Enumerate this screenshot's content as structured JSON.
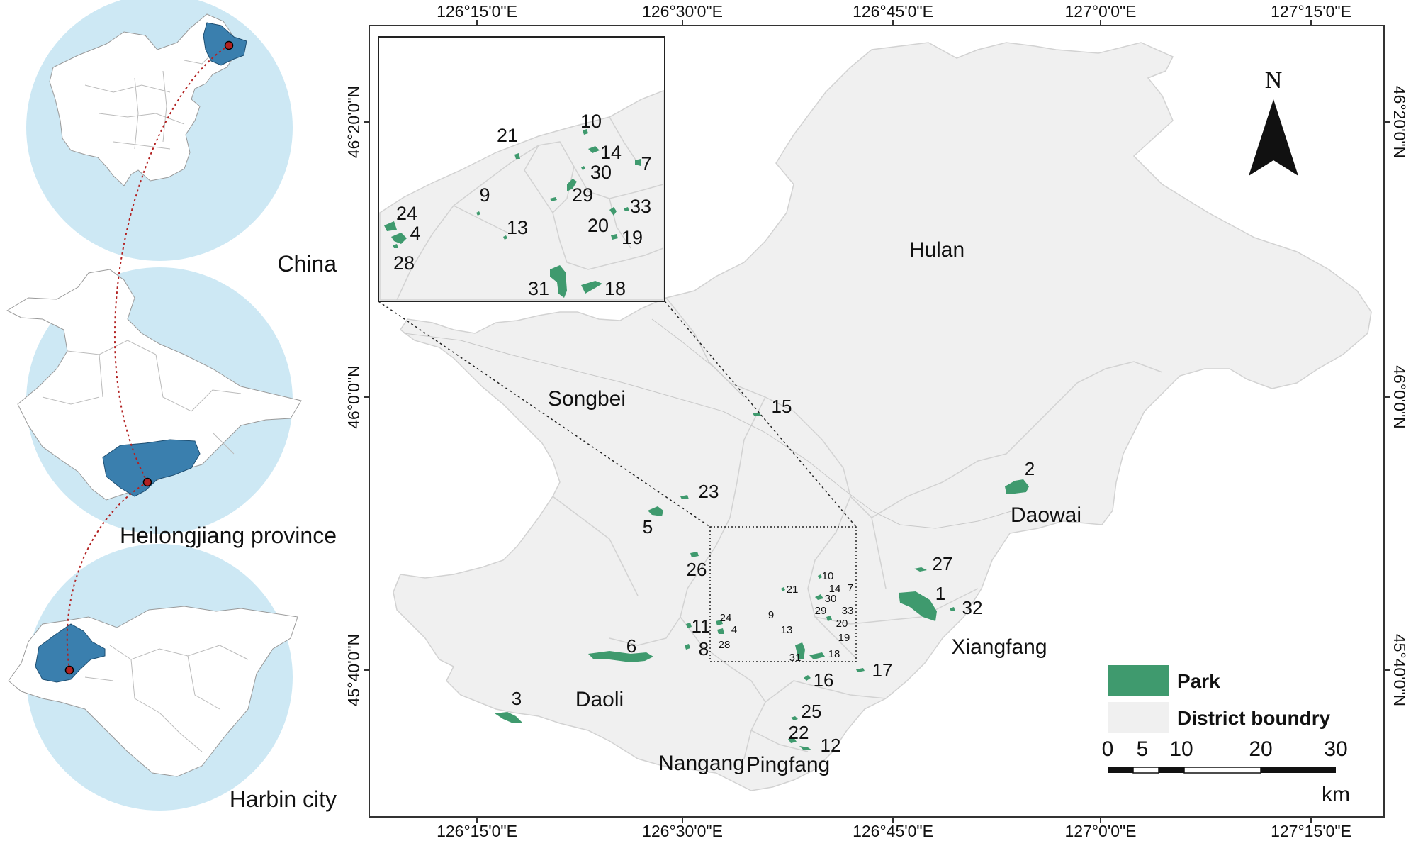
{
  "locator": {
    "labels": [
      "China",
      "Heilongjiang province",
      "Harbin city"
    ]
  },
  "axes": {
    "lon_labels": [
      "126°15'0\"E",
      "126°30'0\"E",
      "126°45'0\"E",
      "127°0'0\"E",
      "127°15'0\"E"
    ],
    "lat_labels": [
      "46°20'0\"N",
      "46°0'0\"N",
      "45°40'0\"N"
    ]
  },
  "north_arrow": {
    "label": "N"
  },
  "districts": [
    "Hulan",
    "Songbei",
    "Daowai",
    "Xiangfang",
    "Daoli",
    "Nangang",
    "Pingfang"
  ],
  "parks": {
    "main": [
      "1",
      "2",
      "3",
      "5",
      "6",
      "8",
      "11",
      "12",
      "15",
      "16",
      "17",
      "22",
      "23",
      "25",
      "26",
      "27",
      "32"
    ],
    "box_small": [
      "10",
      "21",
      "14",
      "7",
      "30",
      "29",
      "33",
      "20",
      "19",
      "9",
      "24",
      "4",
      "13",
      "28",
      "31",
      "18"
    ],
    "inset": [
      "10",
      "21",
      "14",
      "30",
      "7",
      "29",
      "9",
      "24",
      "33",
      "20",
      "4",
      "13",
      "19",
      "28",
      "31",
      "18"
    ]
  },
  "legend": {
    "park_label": "Park",
    "boundary_label": "District boundry",
    "park_color": "#3f9a6e",
    "boundary_color": "#f0f0f0"
  },
  "scale": {
    "ticks": [
      "0",
      "5",
      "10",
      "20",
      "30"
    ],
    "unit": "km"
  },
  "colors": {
    "circle": "#cde8f4",
    "highlight": "#3a7fae",
    "park": "#3f9a6e",
    "district_fill": "#f0f0f0",
    "district_line": "#d4d4d4",
    "connector": "#b22222"
  }
}
